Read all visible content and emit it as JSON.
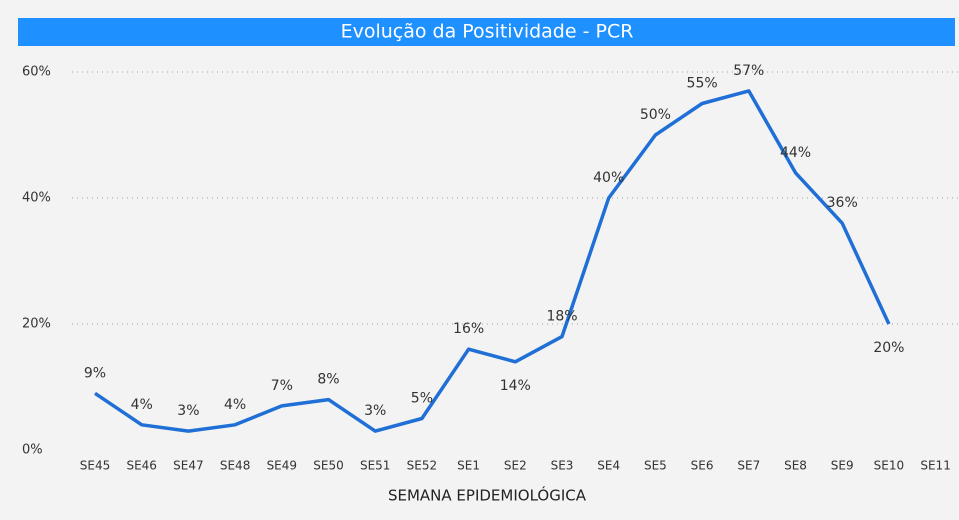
{
  "chart_data": {
    "type": "line",
    "title": "Evolução da Positividade - PCR",
    "x_label": "SEMANA EPIDEMIOLÓGICA",
    "categories": [
      "SE45",
      "SE46",
      "SE47",
      "SE48",
      "SE49",
      "SE50",
      "SE51",
      "SE52",
      "SE1",
      "SE2",
      "SE3",
      "SE4",
      "SE5",
      "SE6",
      "SE7",
      "SE8",
      "SE9",
      "SE10",
      "SE11"
    ],
    "series": [
      {
        "name": "Positividade",
        "color": "#1f6fd6",
        "values": [
          9,
          4,
          3,
          4,
          7,
          8,
          3,
          5,
          16,
          14,
          18,
          40,
          50,
          55,
          57,
          44,
          36,
          20,
          null
        ],
        "value_labels": [
          "9%",
          "4%",
          "3%",
          "4%",
          "7%",
          "8%",
          "3%",
          "5%",
          "16%",
          "14%",
          "18%",
          "40%",
          "50%",
          "55%",
          "57%",
          "44%",
          "36%",
          "20%",
          null
        ]
      }
    ],
    "ylim": [
      0,
      60
    ],
    "yticks": [
      {
        "value": 0,
        "label": "0%"
      },
      {
        "value": 20,
        "label": "20%"
      },
      {
        "value": 40,
        "label": "40%"
      },
      {
        "value": 60,
        "label": "60%"
      }
    ],
    "grid": true
  }
}
